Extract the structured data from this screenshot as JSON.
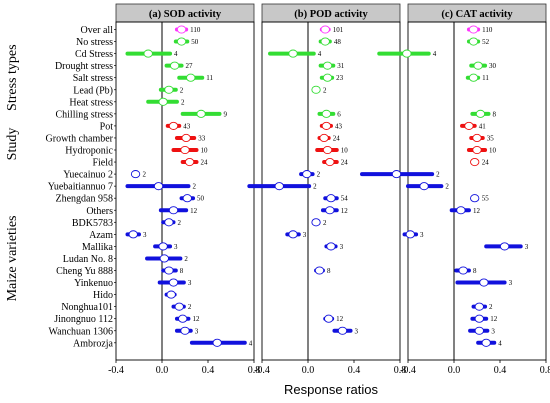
{
  "chart_data": {
    "type": "forest",
    "xlabel": "Response ratios",
    "xlim": [
      -0.4,
      0.8
    ],
    "xticks": [
      -0.4,
      0.0,
      0.4,
      0.8
    ],
    "xtick_labels": [
      "-0.4",
      "0.0",
      "0.4",
      "0.8"
    ],
    "colors": {
      "overall": "#ff33ff",
      "stress": "#33dd33",
      "study": "#ee1111",
      "variety": "#1111dd",
      "panel_header": "#c8c8c8"
    },
    "rows": [
      {
        "label": "Over all",
        "group": "overall"
      },
      {
        "label": "No stress",
        "group": "stress"
      },
      {
        "label": "Cd Stress",
        "group": "stress"
      },
      {
        "label": "Drought stress",
        "group": "stress"
      },
      {
        "label": "Salt stress",
        "group": "stress"
      },
      {
        "label": "Lead (Pb)",
        "group": "stress"
      },
      {
        "label": "Heat stress",
        "group": "stress"
      },
      {
        "label": "Chilling stress",
        "group": "stress"
      },
      {
        "label": "Pot",
        "group": "study"
      },
      {
        "label": "Growth chamber",
        "group": "study"
      },
      {
        "label": "Hydroponic",
        "group": "study"
      },
      {
        "label": "Field",
        "group": "study"
      },
      {
        "label": "Yuecainuo 2",
        "group": "variety"
      },
      {
        "label": "Yuebaitiannuo 7",
        "group": "variety"
      },
      {
        "label": "Zhengdan 958",
        "group": "variety"
      },
      {
        "label": "Others",
        "group": "variety"
      },
      {
        "label": "BDK5783",
        "group": "variety"
      },
      {
        "label": "Azam",
        "group": "variety"
      },
      {
        "label": "Mallika",
        "group": "variety"
      },
      {
        "label": "Ludan No. 8",
        "group": "variety"
      },
      {
        "label": "Cheng Yu 888",
        "group": "variety"
      },
      {
        "label": "Yinkenuo",
        "group": "variety"
      },
      {
        "label": "Hido",
        "group": "variety"
      },
      {
        "label": "Nonghua101",
        "group": "variety"
      },
      {
        "label": "Jinongnuo 112",
        "group": "variety"
      },
      {
        "label": "Wanchuan 1306",
        "group": "variety"
      },
      {
        "label": "Ambrozja",
        "group": "variety"
      }
    ],
    "groups": [
      {
        "label": "Stress types",
        "first_row": 1,
        "last_row": 7
      },
      {
        "label": "Study",
        "first_row": 8,
        "last_row": 11
      },
      {
        "label": "Maize varieties",
        "first_row": 12,
        "last_row": 26
      }
    ],
    "panels": [
      {
        "title": "(a) SOD activity",
        "points": [
          {
            "row": 0,
            "mean": 0.17,
            "lo": 0.13,
            "hi": 0.21,
            "n": "110"
          },
          {
            "row": 1,
            "mean": 0.17,
            "lo": 0.12,
            "hi": 0.22,
            "n": "50"
          },
          {
            "row": 2,
            "mean": -0.12,
            "lo": -0.3,
            "hi": 0.07,
            "n": "4"
          },
          {
            "row": 3,
            "mean": 0.11,
            "lo": 0.04,
            "hi": 0.17,
            "n": "27"
          },
          {
            "row": 4,
            "mean": 0.25,
            "lo": 0.15,
            "hi": 0.35,
            "n": "11"
          },
          {
            "row": 5,
            "mean": 0.06,
            "lo": -0.01,
            "hi": 0.12,
            "n": "2"
          },
          {
            "row": 6,
            "mean": 0.01,
            "lo": -0.12,
            "hi": 0.13,
            "n": "2"
          },
          {
            "row": 7,
            "mean": 0.34,
            "lo": 0.18,
            "hi": 0.5,
            "n": "9"
          },
          {
            "row": 8,
            "mean": 0.1,
            "lo": 0.05,
            "hi": 0.15,
            "n": "43"
          },
          {
            "row": 9,
            "mean": 0.21,
            "lo": 0.13,
            "hi": 0.28,
            "n": "33"
          },
          {
            "row": 10,
            "mean": 0.2,
            "lo": 0.1,
            "hi": 0.3,
            "n": "10"
          },
          {
            "row": 11,
            "mean": 0.24,
            "lo": 0.18,
            "hi": 0.3,
            "n": "24"
          },
          {
            "row": 12,
            "mean": -0.23,
            "lo": -0.23,
            "hi": -0.23,
            "n": "2"
          },
          {
            "row": 13,
            "mean": -0.03,
            "lo": -0.3,
            "hi": 0.23,
            "n": "2"
          },
          {
            "row": 14,
            "mean": 0.22,
            "lo": 0.17,
            "hi": 0.27,
            "n": "50"
          },
          {
            "row": 15,
            "mean": 0.1,
            "lo": -0.01,
            "hi": 0.21,
            "n": "12"
          },
          {
            "row": 16,
            "mean": 0.06,
            "lo": 0.01,
            "hi": 0.1,
            "n": "2"
          },
          {
            "row": 17,
            "mean": -0.25,
            "lo": -0.3,
            "hi": -0.2,
            "n": "3"
          },
          {
            "row": 18,
            "mean": 0.01,
            "lo": -0.06,
            "hi": 0.07,
            "n": "3"
          },
          {
            "row": 19,
            "mean": 0.02,
            "lo": -0.13,
            "hi": 0.16,
            "n": "2"
          },
          {
            "row": 20,
            "mean": 0.06,
            "lo": 0.01,
            "hi": 0.12,
            "n": "8"
          },
          {
            "row": 21,
            "mean": 0.1,
            "lo": -0.02,
            "hi": 0.19,
            "n": "3"
          },
          {
            "row": 22,
            "mean": 0.08,
            "lo": 0.04,
            "hi": 0.11,
            "n": ""
          },
          {
            "row": 23,
            "mean": 0.15,
            "lo": 0.1,
            "hi": 0.19,
            "n": "2"
          },
          {
            "row": 24,
            "mean": 0.18,
            "lo": 0.13,
            "hi": 0.23,
            "n": "12"
          },
          {
            "row": 25,
            "mean": 0.2,
            "lo": 0.13,
            "hi": 0.25,
            "n": "3"
          },
          {
            "row": 26,
            "mean": 0.48,
            "lo": 0.26,
            "hi": 0.72,
            "n": "4"
          }
        ]
      },
      {
        "title": "(b) POD activity",
        "points": [
          {
            "row": 0,
            "mean": 0.15,
            "lo": 0.12,
            "hi": 0.18,
            "n": "101"
          },
          {
            "row": 1,
            "mean": 0.15,
            "lo": 0.11,
            "hi": 0.19,
            "n": "48"
          },
          {
            "row": 2,
            "mean": -0.13,
            "lo": -0.33,
            "hi": 0.05,
            "n": "4"
          },
          {
            "row": 3,
            "mean": 0.17,
            "lo": 0.11,
            "hi": 0.22,
            "n": "31"
          },
          {
            "row": 4,
            "mean": 0.17,
            "lo": 0.12,
            "hi": 0.21,
            "n": "23"
          },
          {
            "row": 5,
            "mean": 0.07,
            "lo": 0.07,
            "hi": 0.07,
            "n": "2"
          },
          {
            "row": 6,
            "mean": null,
            "lo": null,
            "hi": null,
            "n": ""
          },
          {
            "row": 7,
            "mean": 0.16,
            "lo": 0.1,
            "hi": 0.22,
            "n": "6"
          },
          {
            "row": 8,
            "mean": 0.16,
            "lo": 0.12,
            "hi": 0.2,
            "n": "43"
          },
          {
            "row": 9,
            "mean": 0.14,
            "lo": 0.1,
            "hi": 0.18,
            "n": "24"
          },
          {
            "row": 10,
            "mean": 0.17,
            "lo": 0.08,
            "hi": 0.25,
            "n": "10"
          },
          {
            "row": 11,
            "mean": 0.19,
            "lo": 0.14,
            "hi": 0.25,
            "n": "24"
          },
          {
            "row": 12,
            "mean": -0.01,
            "lo": -0.06,
            "hi": 0.04,
            "n": "2"
          },
          {
            "row": 13,
            "mean": -0.25,
            "lo": -0.51,
            "hi": 0.01,
            "n": "2"
          },
          {
            "row": 14,
            "mean": 0.2,
            "lo": 0.15,
            "hi": 0.25,
            "n": "54"
          },
          {
            "row": 15,
            "mean": 0.19,
            "lo": 0.13,
            "hi": 0.25,
            "n": "12"
          },
          {
            "row": 16,
            "mean": 0.07,
            "lo": 0.07,
            "hi": 0.07,
            "n": "2"
          },
          {
            "row": 17,
            "mean": -0.13,
            "lo": -0.18,
            "hi": -0.08,
            "n": "3"
          },
          {
            "row": 18,
            "mean": 0.2,
            "lo": 0.16,
            "hi": 0.24,
            "n": "3"
          },
          {
            "row": 19,
            "mean": null,
            "lo": null,
            "hi": null,
            "n": ""
          },
          {
            "row": 20,
            "mean": 0.1,
            "lo": 0.07,
            "hi": 0.13,
            "n": "8"
          },
          {
            "row": 21,
            "mean": null,
            "lo": null,
            "hi": null,
            "n": ""
          },
          {
            "row": 22,
            "mean": null,
            "lo": null,
            "hi": null,
            "n": ""
          },
          {
            "row": 23,
            "mean": null,
            "lo": null,
            "hi": null,
            "n": ""
          },
          {
            "row": 24,
            "mean": 0.18,
            "lo": 0.15,
            "hi": 0.21,
            "n": "12"
          },
          {
            "row": 25,
            "mean": 0.3,
            "lo": 0.23,
            "hi": 0.37,
            "n": "3"
          },
          {
            "row": 26,
            "mean": null,
            "lo": null,
            "hi": null,
            "n": ""
          }
        ]
      },
      {
        "title": "(c) CAT activity",
        "points": [
          {
            "row": 0,
            "mean": 0.17,
            "lo": 0.13,
            "hi": 0.21,
            "n": "110"
          },
          {
            "row": 1,
            "mean": 0.17,
            "lo": 0.13,
            "hi": 0.21,
            "n": "52"
          },
          {
            "row": 2,
            "mean": -0.41,
            "lo": -0.65,
            "hi": -0.22,
            "n": "4"
          },
          {
            "row": 3,
            "mean": 0.21,
            "lo": 0.15,
            "hi": 0.27,
            "n": "30"
          },
          {
            "row": 4,
            "mean": 0.17,
            "lo": 0.12,
            "hi": 0.21,
            "n": "11"
          },
          {
            "row": 5,
            "mean": null,
            "lo": null,
            "hi": null,
            "n": ""
          },
          {
            "row": 6,
            "mean": null,
            "lo": null,
            "hi": null,
            "n": ""
          },
          {
            "row": 7,
            "mean": 0.23,
            "lo": 0.16,
            "hi": 0.3,
            "n": "8"
          },
          {
            "row": 8,
            "mean": 0.13,
            "lo": 0.07,
            "hi": 0.18,
            "n": "41"
          },
          {
            "row": 9,
            "mean": 0.2,
            "lo": 0.15,
            "hi": 0.25,
            "n": "35"
          },
          {
            "row": 10,
            "mean": 0.2,
            "lo": 0.13,
            "hi": 0.27,
            "n": "10"
          },
          {
            "row": 11,
            "mean": 0.18,
            "lo": 0.18,
            "hi": 0.18,
            "n": "24"
          },
          {
            "row": 12,
            "mean": -0.5,
            "lo": -0.8,
            "hi": -0.19,
            "n": "2"
          },
          {
            "row": 13,
            "mean": -0.26,
            "lo": -0.4,
            "hi": -0.11,
            "n": "2"
          },
          {
            "row": 14,
            "mean": 0.18,
            "lo": 0.18,
            "hi": 0.18,
            "n": "55"
          },
          {
            "row": 15,
            "mean": 0.06,
            "lo": -0.02,
            "hi": 0.13,
            "n": "12"
          },
          {
            "row": 16,
            "mean": null,
            "lo": null,
            "hi": null,
            "n": ""
          },
          {
            "row": 17,
            "mean": -0.38,
            "lo": -0.43,
            "hi": -0.33,
            "n": "3"
          },
          {
            "row": 18,
            "mean": 0.44,
            "lo": 0.28,
            "hi": 0.58,
            "n": "3"
          },
          {
            "row": 19,
            "mean": null,
            "lo": null,
            "hi": null,
            "n": ""
          },
          {
            "row": 20,
            "mean": 0.08,
            "lo": 0.02,
            "hi": 0.13,
            "n": "8"
          },
          {
            "row": 21,
            "mean": 0.26,
            "lo": 0.03,
            "hi": 0.44,
            "n": "3"
          },
          {
            "row": 22,
            "mean": null,
            "lo": null,
            "hi": null,
            "n": ""
          },
          {
            "row": 23,
            "mean": 0.22,
            "lo": 0.17,
            "hi": 0.27,
            "n": "2"
          },
          {
            "row": 24,
            "mean": 0.22,
            "lo": 0.16,
            "hi": 0.28,
            "n": "12"
          },
          {
            "row": 25,
            "mean": 0.22,
            "lo": 0.14,
            "hi": 0.29,
            "n": "3"
          },
          {
            "row": 26,
            "mean": 0.28,
            "lo": 0.21,
            "hi": 0.35,
            "n": "4"
          }
        ]
      }
    ]
  }
}
